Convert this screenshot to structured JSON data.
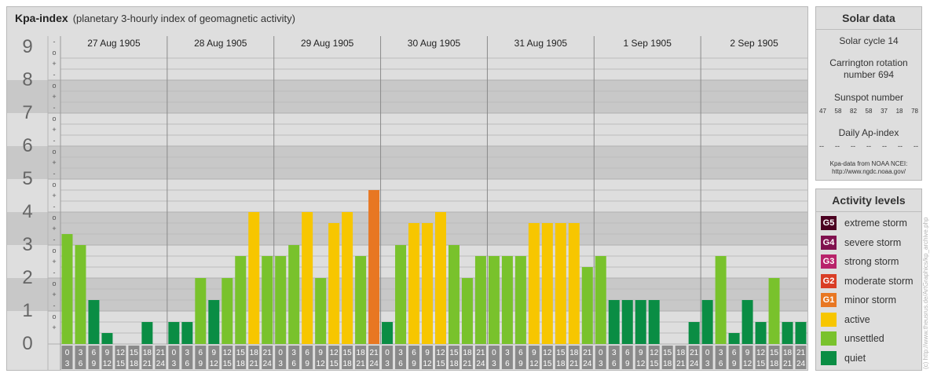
{
  "header": {
    "title": "Kpa-index",
    "subtitle": "(planetary 3-hourly index of geomagnetic activity)"
  },
  "chart_data": {
    "type": "bar",
    "y_range": [
      0,
      9
    ],
    "y_ticks": [
      "0",
      "1",
      "2",
      "3",
      "4",
      "5",
      "6",
      "7",
      "8",
      "9"
    ],
    "subdivision_labels": [
      "-",
      "+",
      "o"
    ],
    "days": [
      "27 Aug 1905",
      "28 Aug 1905",
      "29 Aug 1905",
      "30 Aug 1905",
      "31 Aug 1905",
      "1 Sep 1905",
      "2 Sep 1905"
    ],
    "slot_labels": [
      [
        "0",
        "3"
      ],
      [
        "3",
        "6"
      ],
      [
        "6",
        "9"
      ],
      [
        "9",
        "12"
      ],
      [
        "12",
        "15"
      ],
      [
        "15",
        "18"
      ],
      [
        "18",
        "21"
      ],
      [
        "21",
        "24"
      ]
    ],
    "values": [
      [
        3.333,
        3.0,
        1.333,
        0.333,
        0.0,
        0.0,
        0.667,
        0.0
      ],
      [
        0.667,
        0.667,
        2.0,
        1.333,
        2.0,
        2.667,
        4.0,
        2.667
      ],
      [
        2.667,
        3.0,
        4.0,
        2.0,
        3.667,
        4.0,
        2.667,
        4.667
      ],
      [
        0.667,
        3.0,
        3.667,
        3.667,
        4.0,
        3.0,
        2.0,
        2.667
      ],
      [
        2.667,
        2.667,
        2.667,
        3.667,
        3.667,
        3.667,
        3.667,
        2.333
      ],
      [
        2.667,
        1.333,
        1.333,
        1.333,
        1.333,
        0.0,
        0.0,
        0.667
      ],
      [
        1.333,
        2.667,
        0.333,
        1.333,
        0.667,
        2.0,
        0.667,
        0.667
      ]
    ],
    "colors": {
      "quiet": "#0a8d44",
      "unsettled": "#79c22c",
      "active": "#f7c600",
      "minor": "#e87722",
      "moderate": "#d93d25",
      "strong": "#b8236a",
      "severe": "#80114f",
      "extreme": "#4b0021"
    },
    "band_dark": "#c8c8c8",
    "band_light": "#dedede"
  },
  "solar": {
    "title": "Solar data",
    "cycle": "Solar cycle 14",
    "carrington_1": "Carrington rotation",
    "carrington_2": "number 694",
    "sunspot_title": "Sunspot number",
    "sunspot_values": [
      "47",
      "58",
      "82",
      "58",
      "37",
      "18",
      "78"
    ],
    "ap_title": "Daily Ap-index",
    "ap_values": [
      "--",
      "--",
      "--",
      "--",
      "--",
      "--",
      "--"
    ],
    "source_1": "Kpa-data from NOAA NCEI:",
    "source_2": "http://www.ngdc.noaa.gov/"
  },
  "activity": {
    "title": "Activity levels",
    "levels": [
      {
        "code": "G5",
        "label": "extreme storm",
        "color": "#4b0021"
      },
      {
        "code": "G4",
        "label": "severe storm",
        "color": "#80114f"
      },
      {
        "code": "G3",
        "label": "strong storm",
        "color": "#b8236a"
      },
      {
        "code": "G2",
        "label": "moderate storm",
        "color": "#d93d25"
      },
      {
        "code": "G1",
        "label": "minor storm",
        "color": "#e87722"
      },
      {
        "code": "",
        "label": "active",
        "color": "#f7c600"
      },
      {
        "code": "",
        "label": "unsettled",
        "color": "#79c22c"
      },
      {
        "code": "",
        "label": "quiet",
        "color": "#0a8d44"
      }
    ]
  },
  "watermark": "(c) http://www.theusrus.de/ArtGraphics/kp_archive.php"
}
